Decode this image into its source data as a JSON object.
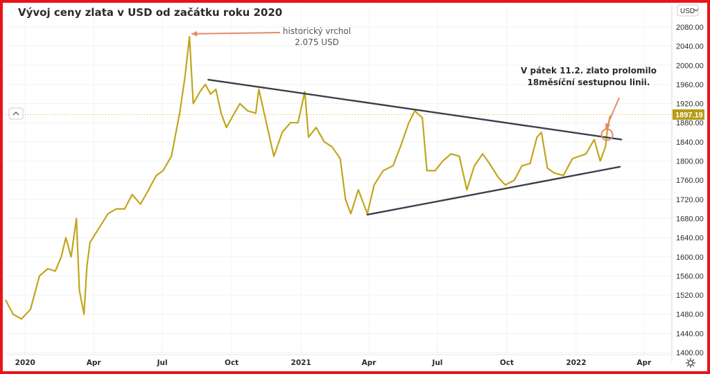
{
  "chart_data": {
    "type": "line",
    "title": "Vývoj ceny zlata v USD od začátku roku 2020",
    "currency": "USD",
    "last_price": "1897.19",
    "ylim": [
      1400,
      2100
    ],
    "y_ticks": [
      "2080.00",
      "2040.00",
      "2000.00",
      "1960.00",
      "1920.00",
      "1880.00",
      "1840.00",
      "1800.00",
      "1760.00",
      "1720.00",
      "1680.00",
      "1640.00",
      "1600.00",
      "1560.00",
      "1520.00",
      "1480.00",
      "1440.00",
      "1400.00"
    ],
    "x_ticks": [
      {
        "label": "2020",
        "date": "2020-01-01"
      },
      {
        "label": "Apr",
        "date": "2020-04-01"
      },
      {
        "label": "Jul",
        "date": "2020-07-01"
      },
      {
        "label": "Oct",
        "date": "2020-10-01"
      },
      {
        "label": "2021",
        "date": "2021-01-01"
      },
      {
        "label": "Apr",
        "date": "2021-04-01"
      },
      {
        "label": "Jul",
        "date": "2021-07-01"
      },
      {
        "label": "Oct",
        "date": "2021-10-01"
      },
      {
        "label": "2022",
        "date": "2022-01-01"
      },
      {
        "label": "Apr",
        "date": "2022-04-01"
      }
    ],
    "xlim": [
      "2019-12-06",
      "2022-05-08"
    ],
    "series": [
      {
        "color": "#c2a51b",
        "x": [
          "2019-12-06",
          "2019-12-16",
          "2019-12-27",
          "2020-01-08",
          "2020-01-20",
          "2020-01-31",
          "2020-02-10",
          "2020-02-18",
          "2020-02-24",
          "2020-03-02",
          "2020-03-09",
          "2020-03-13",
          "2020-03-19",
          "2020-03-23",
          "2020-03-27",
          "2020-04-08",
          "2020-04-20",
          "2020-05-01",
          "2020-05-12",
          "2020-05-22",
          "2020-06-02",
          "2020-06-11",
          "2020-06-23",
          "2020-07-02",
          "2020-07-13",
          "2020-07-24",
          "2020-07-31",
          "2020-08-06",
          "2020-08-11",
          "2020-08-20",
          "2020-08-27",
          "2020-09-03",
          "2020-09-10",
          "2020-09-17",
          "2020-09-24",
          "2020-10-01",
          "2020-10-12",
          "2020-10-22",
          "2020-11-02",
          "2020-11-06",
          "2020-11-16",
          "2020-11-26",
          "2020-12-07",
          "2020-12-18",
          "2020-12-28",
          "2021-01-06",
          "2021-01-11",
          "2021-01-21",
          "2021-02-01",
          "2021-02-11",
          "2021-02-22",
          "2021-03-01",
          "2021-03-08",
          "2021-03-18",
          "2021-03-30",
          "2021-04-08",
          "2021-04-20",
          "2021-05-03",
          "2021-05-13",
          "2021-05-24",
          "2021-06-01",
          "2021-06-11",
          "2021-06-17",
          "2021-06-28",
          "2021-07-08",
          "2021-07-19",
          "2021-07-30",
          "2021-08-09",
          "2021-08-19",
          "2021-08-30",
          "2021-09-08",
          "2021-09-20",
          "2021-09-29",
          "2021-10-11",
          "2021-10-21",
          "2021-11-01",
          "2021-11-10",
          "2021-11-16",
          "2021-11-24",
          "2021-12-03",
          "2021-12-15",
          "2021-12-27",
          "2022-01-05",
          "2022-01-14",
          "2022-01-25",
          "2022-02-02",
          "2022-02-09",
          "2022-02-11",
          "2022-02-15"
        ],
        "y": [
          1510,
          1480,
          1470,
          1490,
          1560,
          1575,
          1570,
          1600,
          1640,
          1600,
          1680,
          1530,
          1480,
          1580,
          1630,
          1660,
          1690,
          1700,
          1700,
          1730,
          1710,
          1735,
          1770,
          1780,
          1810,
          1900,
          1975,
          2060,
          1920,
          1945,
          1960,
          1940,
          1950,
          1900,
          1870,
          1890,
          1920,
          1905,
          1900,
          1950,
          1880,
          1810,
          1860,
          1880,
          1880,
          1945,
          1850,
          1870,
          1840,
          1830,
          1805,
          1720,
          1690,
          1740,
          1690,
          1750,
          1780,
          1790,
          1830,
          1880,
          1905,
          1890,
          1780,
          1780,
          1800,
          1815,
          1810,
          1740,
          1790,
          1815,
          1795,
          1765,
          1750,
          1760,
          1790,
          1795,
          1850,
          1860,
          1785,
          1775,
          1770,
          1805,
          1810,
          1815,
          1845,
          1800,
          1830,
          1860,
          1895
        ]
      }
    ],
    "trendlines": [
      {
        "from": {
          "x": "2020-08-31",
          "y": 1970
        },
        "to": {
          "x": "2022-03-02",
          "y": 1845
        }
      },
      {
        "from": {
          "x": "2021-03-30",
          "y": 1688
        },
        "to": {
          "x": "2022-02-28",
          "y": 1788
        }
      }
    ],
    "annotations": {
      "peak": {
        "lines": [
          "historický vrchol",
          "2.075 USD"
        ],
        "target": {
          "x": "2020-08-06",
          "y": 2060
        }
      },
      "breakout": {
        "lines": [
          "V pátek 11.2. zlato prolomilo",
          "18měsíční sestupnou linii."
        ],
        "target": {
          "x": "2022-02-11",
          "y": 1855
        }
      }
    }
  },
  "colors": {
    "frame": "#e8141b",
    "line": "#c2a51b",
    "trend": "#3a3f4c",
    "annotation_arrow": "#e8886a",
    "price_tag": "#b59a16"
  },
  "icons": {
    "collapse": "chevron-up-icon",
    "settings": "gear-icon",
    "currency_dropdown": "chevron-down-icon"
  }
}
